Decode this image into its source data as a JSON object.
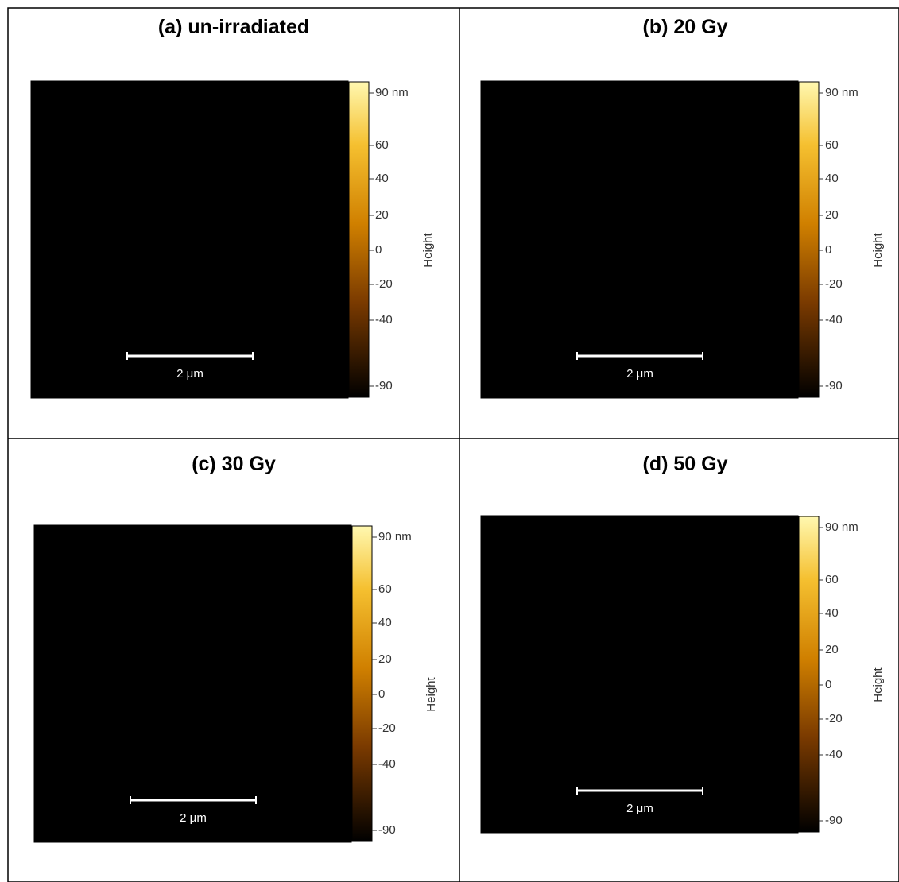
{
  "panels": [
    {
      "title": "(a)  un-irradiated",
      "colorbar_labels": [
        "90 nm",
        "60",
        "40",
        "20",
        "0",
        "-20",
        "-40",
        "-90"
      ],
      "colorbar_title": "Height",
      "scale_bar": "2 μm"
    },
    {
      "title": "(b) 20 Gy",
      "colorbar_labels": [
        "90 nm",
        "60",
        "40",
        "20",
        "0",
        "-20",
        "-40",
        "-90"
      ],
      "colorbar_title": "Height",
      "scale_bar": "2 μm"
    },
    {
      "title": "(c) 30 Gy",
      "colorbar_labels": [
        "90 nm",
        "60",
        "40",
        "20",
        "0",
        "-20",
        "-40",
        "-90"
      ],
      "colorbar_title": "Height",
      "scale_bar": "2 μm"
    },
    {
      "title": "(d) 50 Gy",
      "colorbar_labels": [
        "90 nm",
        "60",
        "40",
        "20",
        "0",
        "-20",
        "-40",
        "-90"
      ],
      "colorbar_title": "Height",
      "scale_bar": "2 μm"
    }
  ]
}
